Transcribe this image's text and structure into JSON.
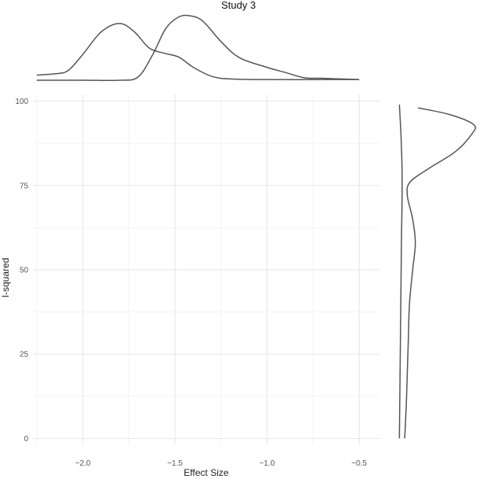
{
  "chart_data": [
    {
      "type": "scatter",
      "title": "Study  3",
      "xlabel": "Effect Size",
      "ylabel": "I-squared",
      "xlim": [
        -2.27,
        -0.39
      ],
      "ylim": [
        -2,
        102
      ],
      "x_ticks": [
        -2.0,
        -1.5,
        -1.0,
        -0.5
      ],
      "x_tick_labels": [
        "−2.0",
        "−1.5",
        "−1.0",
        "−0.5"
      ],
      "y_ticks": [
        0,
        25,
        50,
        75,
        100
      ],
      "y_tick_labels": [
        "0",
        "25",
        "50",
        "75",
        "100"
      ],
      "grid": true,
      "series": []
    },
    {
      "type": "line",
      "panel": "top-marginal-density",
      "xlim": [
        -2.27,
        -0.39
      ],
      "series": [
        {
          "points": [
            [
              -2.25,
              0.08
            ],
            [
              -2.15,
              0.1
            ],
            [
              -2.08,
              0.15
            ],
            [
              -2.0,
              0.4
            ],
            [
              -1.9,
              0.75
            ],
            [
              -1.8,
              0.88
            ],
            [
              -1.72,
              0.75
            ],
            [
              -1.64,
              0.5
            ],
            [
              -1.56,
              0.42
            ],
            [
              -1.48,
              0.36
            ],
            [
              -1.4,
              0.2
            ],
            [
              -1.3,
              0.06
            ],
            [
              -1.2,
              0.02
            ],
            [
              -1.0,
              0.01
            ],
            [
              -0.7,
              0.01
            ],
            [
              -0.5,
              0.01
            ]
          ]
        },
        {
          "points": [
            [
              -2.25,
              0.0
            ],
            [
              -2.0,
              0.0
            ],
            [
              -1.8,
              0.0
            ],
            [
              -1.7,
              0.05
            ],
            [
              -1.62,
              0.4
            ],
            [
              -1.55,
              0.8
            ],
            [
              -1.48,
              0.98
            ],
            [
              -1.42,
              1.0
            ],
            [
              -1.35,
              0.92
            ],
            [
              -1.25,
              0.6
            ],
            [
              -1.15,
              0.35
            ],
            [
              -1.0,
              0.2
            ],
            [
              -0.9,
              0.12
            ],
            [
              -0.8,
              0.04
            ],
            [
              -0.7,
              0.03
            ],
            [
              -0.6,
              0.02
            ],
            [
              -0.5,
              0.01
            ]
          ]
        }
      ]
    },
    {
      "type": "line",
      "panel": "right-marginal-density",
      "ylim": [
        -2,
        102
      ],
      "series": [
        {
          "points": [
            [
              0,
              0.15
            ],
            [
              10,
              0.18
            ],
            [
              20,
              0.2
            ],
            [
              30,
              0.22
            ],
            [
              40,
              0.24
            ],
            [
              50,
              0.3
            ],
            [
              58,
              0.35
            ],
            [
              65,
              0.3
            ],
            [
              72,
              0.2
            ],
            [
              76,
              0.25
            ],
            [
              80,
              0.6
            ],
            [
              85,
              1.1
            ],
            [
              90,
              1.4
            ],
            [
              93,
              1.45
            ],
            [
              96,
              1.0
            ],
            [
              98,
              0.4
            ]
          ]
        },
        {
          "points": [
            [
              0,
              0.05
            ],
            [
              15,
              0.06
            ],
            [
              30,
              0.07
            ],
            [
              45,
              0.08
            ],
            [
              60,
              0.09
            ],
            [
              70,
              0.1
            ],
            [
              80,
              0.1
            ],
            [
              90,
              0.08
            ],
            [
              99,
              0.05
            ]
          ]
        }
      ]
    }
  ]
}
